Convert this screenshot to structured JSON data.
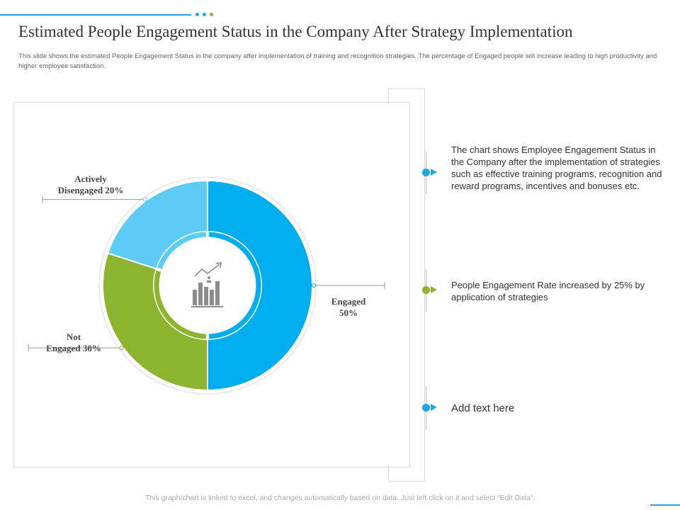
{
  "title": "Estimated People Engagement Status in the Company After Strategy Implementation",
  "subtitle": "This slide shows the estimated People Engagement Status in the company after implementation of training and recognition strategies. The percentage of Engaged people will increase leading to high productivity and higher employee satisfaction.",
  "colors": {
    "accent_blue": "#1fa7e0",
    "engaged": "#00aeef",
    "not_engaged": "#8db42e",
    "disengaged": "#5ccbf5",
    "dot_green": "#8db42e",
    "dot_blue": "#1fa7e0"
  },
  "chart_data": {
    "type": "pie",
    "title": "",
    "center_icon": "bar-chart-growth-icon",
    "slices": [
      {
        "name": "Engaged",
        "value": 50,
        "label_line1": "Engaged",
        "label_line2": "50%",
        "color": "#00aeef"
      },
      {
        "name": "Not Engaged",
        "value": 30,
        "label_line1": "Not",
        "label_line2": "Engaged 30%",
        "color": "#8db42e"
      },
      {
        "name": "Actively Disengaged",
        "value": 20,
        "label_line1": "Actively",
        "label_line2": "Disengaged 20%",
        "color": "#5ccbf5"
      }
    ]
  },
  "info": [
    {
      "text": "The chart shows Employee Engagement Status in the Company after the implementation of strategies such as effective training programs, recognition and reward programs, incentives and bonuses etc.",
      "color": "#1fa7e0"
    },
    {
      "text": "People Engagement Rate increased by 25% by application of strategies",
      "color": "#8db42e"
    },
    {
      "text": "Add text here",
      "color": "#1fa7e0"
    }
  ],
  "footer": "This graph/chart is linked to excel, and changes automatically based on data. Just left click on it and select “Edit Data”."
}
